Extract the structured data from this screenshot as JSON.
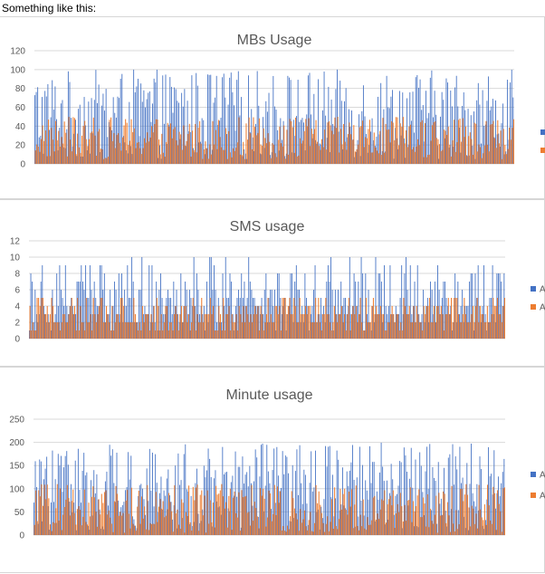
{
  "caption": "Something like this:",
  "colors": {
    "series_a": "#4472C4",
    "series_b": "#ED7D31",
    "grid": "#d9d9d9",
    "text": "#595959"
  },
  "chart_data": [
    {
      "type": "bar",
      "title": "MBs Usage",
      "ylim": [
        0,
        120
      ],
      "yticks": [
        "0",
        "20",
        "40",
        "60",
        "80",
        "100",
        "120"
      ],
      "legend": {
        "placement": "right",
        "entries": [
          "",
          ""
        ]
      },
      "bar_count": 330,
      "series": [
        {
          "values_range": [
            5,
            100
          ]
        },
        {
          "values_range": [
            5,
            50
          ]
        }
      ]
    },
    {
      "type": "bar",
      "title": "SMS usage",
      "ylim": [
        0,
        12
      ],
      "yticks": [
        "0",
        "2",
        "4",
        "6",
        "8",
        "10",
        "12"
      ],
      "legend": {
        "placement": "right",
        "entries": [
          "A",
          "A"
        ]
      },
      "bar_count": 330,
      "series": [
        {
          "values_range": [
            1,
            10
          ]
        },
        {
          "values_range": [
            1,
            5
          ]
        }
      ]
    },
    {
      "type": "bar",
      "title": "Minute usage",
      "ylim": [
        0,
        250
      ],
      "yticks": [
        "0",
        "50",
        "100",
        "150",
        "200",
        "250"
      ],
      "legend": {
        "placement": "right",
        "entries": [
          "A",
          "A"
        ]
      },
      "bar_count": 330,
      "series": [
        {
          "values_range": [
            10,
            200
          ]
        },
        {
          "values_range": [
            5,
            110
          ]
        }
      ]
    }
  ]
}
